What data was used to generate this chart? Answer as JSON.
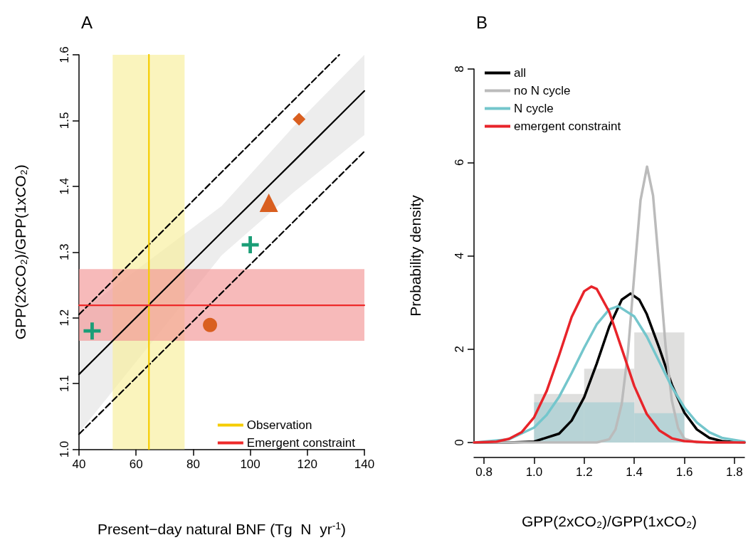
{
  "chart_data": [
    {
      "type": "scatter",
      "title": "A",
      "xlabel": "Present−day natural BNF (Tg  N  yr$^{-1}$)",
      "ylabel": "GPP(2xCO₂)/GPP(1xCO₂)",
      "xlim": [
        40,
        140
      ],
      "xticks": [
        40,
        60,
        80,
        100,
        120,
        140
      ],
      "ylim": [
        1.0,
        1.6
      ],
      "yticks": [
        {
          "value": 1.0,
          "label": "1.0"
        },
        1.1,
        1.2,
        1.3,
        1.4,
        1.5,
        1.6
      ],
      "grid": false,
      "legend": "bottom right",
      "bands": [
        {
          "axis": "x",
          "from": 51.8,
          "to": 77.0,
          "color": "#f7ee9a"
        },
        {
          "axis": "y",
          "from": 1.165,
          "to": 1.274,
          "color": "#f29595"
        }
      ],
      "series": [
        {
          "type": "line",
          "color": "#000000",
          "x": [
            40,
            90,
            115,
            140
          ],
          "values": [
            1.114,
            1.33,
            1.437,
            1.545
          ],
          "lower": [
            1.025,
            1.295,
            1.39,
            1.478
          ],
          "upper": [
            1.207,
            1.37,
            1.49,
            1.6
          ]
        },
        {
          "type": "line",
          "color": "#000000",
          "line_style": "dashed",
          "x": [
            40,
            131.2
          ],
          "values": [
            1.205,
            1.6
          ]
        },
        {
          "type": "line",
          "color": "#000000",
          "line_style": "dashed",
          "x": [
            40,
            140
          ],
          "values": [
            1.023,
            1.453
          ]
        },
        {
          "type": "line",
          "name": "Observation",
          "color": "#f5cc00",
          "x": [
            64.5,
            64.5
          ],
          "values": [
            1.0,
            1.6
          ]
        },
        {
          "type": "line",
          "name": "Emergent constraint",
          "color": "#ee2a2a",
          "x": [
            40,
            140
          ],
          "values": [
            1.219,
            1.219
          ]
        },
        {
          "marker": "cross",
          "color": "#1b9e77",
          "x": [
            44.6
          ],
          "values": [
            1.18
          ]
        },
        {
          "marker": "circle",
          "color": "#d95f20",
          "x": [
            85.9
          ],
          "values": [
            1.189
          ]
        },
        {
          "marker": "cross",
          "color": "#1b9e77",
          "x": [
            100.0
          ],
          "values": [
            1.311
          ]
        },
        {
          "marker": "triangle",
          "color": "#d95f20",
          "x": [
            106.5
          ],
          "values": [
            1.375
          ]
        },
        {
          "marker": "diamond",
          "color": "#d95f20",
          "x": [
            117.1
          ],
          "values": [
            1.502
          ]
        }
      ]
    },
    {
      "type": "line",
      "title": "B",
      "xlabel": "GPP(2xCO₂)/GPP(1xCO₂)",
      "ylabel": "Probability density",
      "xlim": [
        0.76,
        1.84
      ],
      "xticks": [
        0.8,
        {
          "value": 1.0,
          "label": "1.0"
        },
        1.2,
        1.4,
        1.6,
        1.8
      ],
      "ylim": [
        0,
        8
      ],
      "yticks": [
        0,
        2,
        4,
        6,
        8
      ],
      "grid": false,
      "legend": "top left",
      "bins": [
        1.0,
        1.2,
        1.4,
        1.6
      ],
      "series": [
        {
          "type": "histogram",
          "color": "#dcdcda",
          "values": [
            1.04,
            1.58,
            2.36
          ]
        },
        {
          "type": "histogram",
          "color": "#b3d2d5",
          "values": [
            0.86,
            0.86,
            0.63
          ]
        },
        {
          "name": "all",
          "color": "#000000",
          "x": [
            0.76,
            0.9,
            1.0,
            1.1,
            1.15,
            1.2,
            1.25,
            1.3,
            1.35,
            1.385,
            1.42,
            1.45,
            1.5,
            1.55,
            1.6,
            1.65,
            1.7,
            1.75,
            1.84
          ],
          "values": [
            0,
            0.0,
            0.02,
            0.19,
            0.47,
            0.97,
            1.69,
            2.48,
            3.06,
            3.19,
            3.06,
            2.75,
            2.02,
            1.24,
            0.64,
            0.28,
            0.1,
            0.03,
            0
          ]
        },
        {
          "name": "no N cycle",
          "color": "#bbbbbb",
          "x": [
            0.76,
            1.2,
            1.25,
            1.3,
            1.325,
            1.35,
            1.375,
            1.4,
            1.425,
            1.451,
            1.475,
            1.5,
            1.525,
            1.55,
            1.575,
            1.6,
            1.65,
            1.7,
            1.84
          ],
          "values": [
            0,
            0,
            0.0,
            0.07,
            0.28,
            0.83,
            1.95,
            3.59,
            5.19,
            5.91,
            5.29,
            3.72,
            2.06,
            0.9,
            0.31,
            0.08,
            0.0,
            0,
            0
          ]
        },
        {
          "name": "N cycle",
          "color": "#74c6cc",
          "x": [
            0.76,
            0.9,
            1.0,
            1.05,
            1.1,
            1.15,
            1.2,
            1.25,
            1.3,
            1.336,
            1.4,
            1.45,
            1.5,
            1.55,
            1.6,
            1.65,
            1.7,
            1.75,
            1.84
          ],
          "values": [
            0.0,
            0.07,
            0.32,
            0.59,
            0.98,
            1.49,
            2.03,
            2.53,
            2.85,
            2.92,
            2.7,
            2.27,
            1.73,
            1.19,
            0.75,
            0.43,
            0.22,
            0.1,
            0.02
          ]
        },
        {
          "name": "emergent constraint",
          "color": "#e8242a",
          "x": [
            0.76,
            0.85,
            0.9,
            0.95,
            1.0,
            1.05,
            1.1,
            1.15,
            1.2,
            1.229,
            1.25,
            1.3,
            1.35,
            1.4,
            1.45,
            1.5,
            1.55,
            1.6,
            1.7,
            1.84
          ],
          "values": [
            0.0,
            0.02,
            0.08,
            0.22,
            0.54,
            1.1,
            1.87,
            2.69,
            3.24,
            3.34,
            3.29,
            2.8,
            2.01,
            1.21,
            0.61,
            0.26,
            0.09,
            0.03,
            0,
            0
          ]
        }
      ]
    }
  ]
}
